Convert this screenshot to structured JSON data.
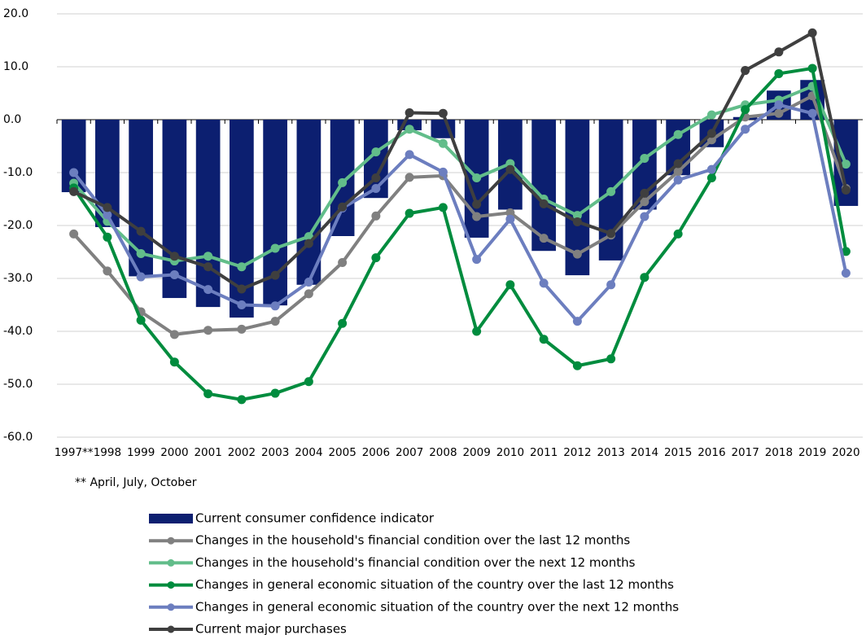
{
  "chart_data": {
    "type": "bar-line",
    "categories": [
      "1997**",
      "1998",
      "1999",
      "2000",
      "2001",
      "2002",
      "2003",
      "2004",
      "2005",
      "2006",
      "2007",
      "2008",
      "2009",
      "2010",
      "2011",
      "2012",
      "2013",
      "2014",
      "2015",
      "2016",
      "2017",
      "2018",
      "2019",
      "2020"
    ],
    "series": [
      {
        "name": "Current consumer confidence indicator",
        "type": "bar",
        "color": "#0c1f70",
        "values": [
          -13.7,
          -20.3,
          -29.6,
          -33.7,
          -35.4,
          -37.4,
          -35.1,
          -31.2,
          -22,
          -14.8,
          -2,
          -3.5,
          -22.3,
          -17,
          -24.8,
          -29.4,
          -26.6,
          -17,
          -10.5,
          -5.2,
          0.5,
          5.5,
          7.5,
          -16.3
        ]
      },
      {
        "name": "Changes in the household's financial condition over the last 12 months",
        "type": "line",
        "color": "#808080",
        "values": [
          -21.6,
          -28.6,
          -36.3,
          -40.6,
          -39.8,
          -39.6,
          -38.1,
          -32.9,
          -27,
          -18.2,
          -10.9,
          -10.6,
          -18.3,
          -17.6,
          -22.4,
          -25.4,
          -21.8,
          -15.5,
          -9.8,
          -3.8,
          0.5,
          1.2,
          4.5,
          -13
        ]
      },
      {
        "name": "Changes in the household's financial condition over the next 12 months",
        "type": "line",
        "color": "#62bd8a",
        "values": [
          -12,
          -19.2,
          -25.3,
          -26.7,
          -25.8,
          -27.8,
          -24.3,
          -22.1,
          -11.9,
          -6.1,
          -1.8,
          -4.5,
          -11,
          -8.3,
          -15,
          -18.1,
          -13.6,
          -7.3,
          -2.8,
          0.9,
          2.8,
          3.7,
          6.3,
          -8.4
        ]
      },
      {
        "name": "Changes in general economic situation of the country over the last 12 months",
        "type": "line",
        "color": "#008c3e",
        "values": [
          -12.9,
          -22.2,
          -37.9,
          -45.8,
          -51.8,
          -52.9,
          -51.7,
          -49.5,
          -38.5,
          -26.1,
          -17.7,
          -16.6,
          -40,
          -31.2,
          -41.5,
          -46.5,
          -45.2,
          -29.8,
          -21.6,
          -11,
          1.9,
          8.7,
          9.7,
          -24.9
        ]
      },
      {
        "name": "Changes in general economic situation of the country over the next 12 months",
        "type": "line",
        "color": "#6c7ebf",
        "values": [
          -10,
          -18,
          -29.7,
          -29.3,
          -32.1,
          -35,
          -35.2,
          -30.7,
          -16.7,
          -13,
          -6.6,
          -9.9,
          -26.4,
          -18.8,
          -30.9,
          -38.1,
          -31.2,
          -18.3,
          -11.4,
          -9.4,
          -1.8,
          2.8,
          1.2,
          -29
        ]
      },
      {
        "name": "Current major purchases",
        "type": "line",
        "color": "#3f3f3f",
        "values": [
          -13.6,
          -16.6,
          -21.1,
          -25.8,
          -27.8,
          -32,
          -29.4,
          -23.4,
          -16.5,
          -11,
          1.3,
          1.2,
          -16,
          -9.4,
          -15.9,
          -19.3,
          -21.5,
          -13.9,
          -8.3,
          -2.6,
          9.3,
          12.8,
          16.4,
          -13.3
        ]
      }
    ],
    "ylim": [
      -60,
      20
    ],
    "yticks": [
      {
        "value": -60,
        "label": "-60.0"
      },
      {
        "value": -50,
        "label": "-50.0"
      },
      {
        "value": -40,
        "label": "-40.0"
      },
      {
        "value": -30,
        "label": "-30.0"
      },
      {
        "value": -20,
        "label": "-20.0"
      },
      {
        "value": -10,
        "label": "-10.0"
      },
      {
        "value": 0,
        "label": "0.0"
      },
      {
        "value": 10,
        "label": "10.0"
      },
      {
        "value": 20,
        "label": "20.0"
      }
    ],
    "grid": true,
    "footnote": "** April, July, October",
    "legend": "bottom"
  }
}
